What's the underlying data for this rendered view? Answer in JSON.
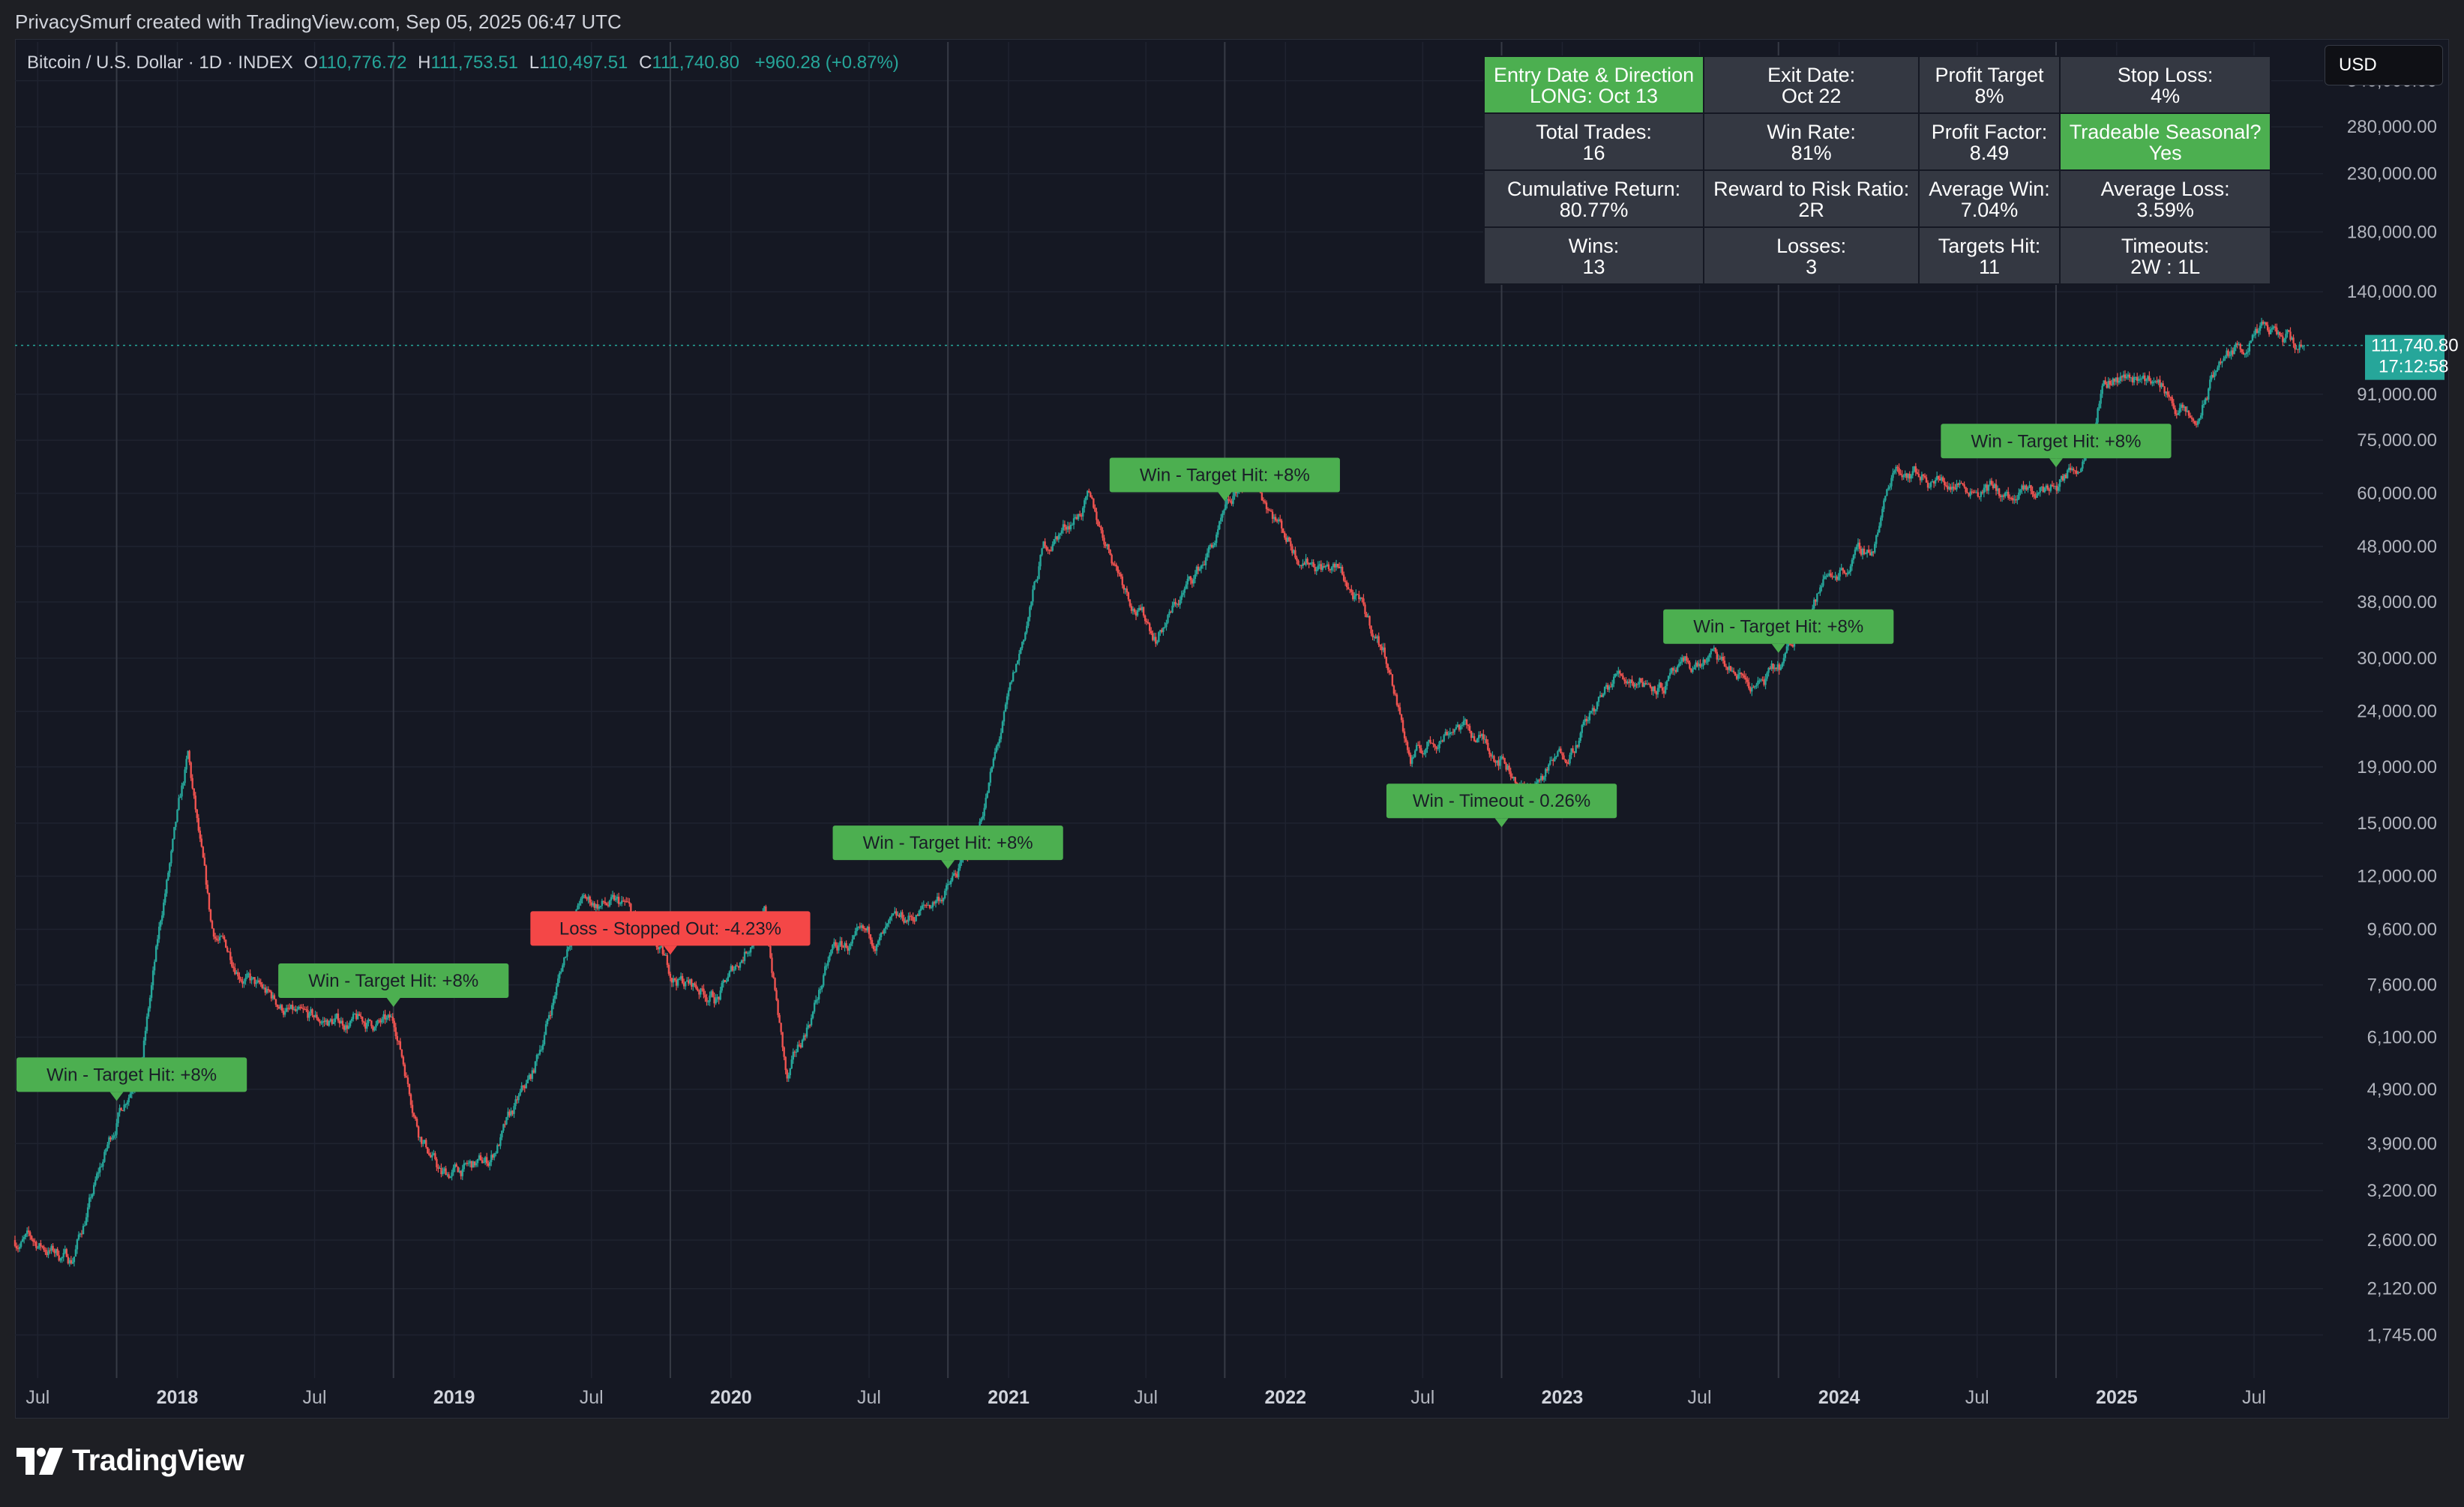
{
  "header": {
    "attribution": "PrivacySmurf created with TradingView.com, Sep 05, 2025 06:47 UTC"
  },
  "symbol": {
    "name": "Bitcoin / U.S. Dollar · 1D · INDEX",
    "open_label": "O",
    "open": "110,776.72",
    "high_label": "H",
    "high": "111,753.51",
    "low_label": "L",
    "low": "110,497.51",
    "close_label": "C",
    "close": "111,740.80",
    "change": "+960.28 (+0.87%)"
  },
  "currency": "USD",
  "price_axis": {
    "ticks": [
      "340,000.00",
      "280,000.00",
      "230,000.00",
      "180,000.00",
      "140,000.00",
      "91,000.00",
      "75,000.00",
      "60,000.00",
      "48,000.00",
      "38,000.00",
      "30,000.00",
      "24,000.00",
      "19,000.00",
      "15,000.00",
      "12,000.00",
      "9,600.00",
      "7,600.00",
      "6,100.00",
      "4,900.00",
      "3,900.00",
      "3,200.00",
      "2,600.00",
      "2,120.00",
      "1,745.00"
    ],
    "last_price": "111,740.80",
    "countdown": "17:12:58"
  },
  "time_axis": {
    "labels": [
      "Jul",
      "2018",
      "Jul",
      "2019",
      "Jul",
      "2020",
      "Jul",
      "2021",
      "Jul",
      "2022",
      "Jul",
      "2023",
      "Jul",
      "2024",
      "Jul",
      "2025",
      "Jul"
    ]
  },
  "stats_table": {
    "rows": [
      [
        {
          "label": "Entry Date & Direction",
          "value": "LONG: Oct 13",
          "highlight": true
        },
        {
          "label": "Exit Date:",
          "value": "Oct 22",
          "highlight": false
        },
        {
          "label": "Profit Target",
          "value": "8%",
          "highlight": false
        },
        {
          "label": "Stop Loss:",
          "value": "4%",
          "highlight": false
        }
      ],
      [
        {
          "label": "Total Trades:",
          "value": "16",
          "highlight": false
        },
        {
          "label": "Win Rate:",
          "value": "81%",
          "highlight": false
        },
        {
          "label": "Profit Factor:",
          "value": "8.49",
          "highlight": false
        },
        {
          "label": "Tradeable Seasonal?",
          "value": "Yes",
          "highlight": true
        }
      ],
      [
        {
          "label": "Cumulative Return:",
          "value": "80.77%",
          "highlight": false
        },
        {
          "label": "Reward to Risk Ratio:",
          "value": "2R",
          "highlight": false
        },
        {
          "label": "Average Win:",
          "value": "7.04%",
          "highlight": false
        },
        {
          "label": "Average Loss:",
          "value": "3.59%",
          "highlight": false
        }
      ],
      [
        {
          "label": "Wins:",
          "value": "13",
          "highlight": false
        },
        {
          "label": "Losses:",
          "value": "3",
          "highlight": false
        },
        {
          "label": "Targets Hit:",
          "value": "11",
          "highlight": false
        },
        {
          "label": "Timeouts:",
          "value": "2W : 1L",
          "highlight": false
        }
      ]
    ]
  },
  "trade_labels": [
    {
      "text": "Win - Target Hit: +8%",
      "kind": "win"
    },
    {
      "text": "Win - Target Hit: +8%",
      "kind": "win"
    },
    {
      "text": "Loss - Stopped Out: -4.23%",
      "kind": "loss"
    },
    {
      "text": "Win - Target Hit: +8%",
      "kind": "win"
    },
    {
      "text": "Win - Target Hit: +8%",
      "kind": "win"
    },
    {
      "text": "Win - Timeout - 0.26%",
      "kind": "win"
    },
    {
      "text": "Win - Target Hit: +8%",
      "kind": "win"
    },
    {
      "text": "Win - Target Hit: +8%",
      "kind": "win"
    }
  ],
  "chart_data": {
    "type": "line",
    "title": "Bitcoin / U.S. Dollar · 1D · INDEX",
    "xlabel": "",
    "ylabel": "",
    "scale": "log",
    "ylim": [
      1600,
      400000
    ],
    "x": [
      "2017-06",
      "2017-08",
      "2017-10",
      "2017-11",
      "2017-12",
      "2018-01",
      "2018-02",
      "2018-04",
      "2018-06",
      "2018-08",
      "2018-10",
      "2018-11",
      "2018-12",
      "2019-02",
      "2019-04",
      "2019-06",
      "2019-08",
      "2019-10",
      "2019-12",
      "2020-02",
      "2020-03",
      "2020-05",
      "2020-07",
      "2020-09",
      "2020-10",
      "2020-11",
      "2021-01",
      "2021-02",
      "2021-04",
      "2021-06",
      "2021-07",
      "2021-09",
      "2021-11",
      "2022-01",
      "2022-03",
      "2022-05",
      "2022-06",
      "2022-08",
      "2022-10",
      "2022-11",
      "2023-01",
      "2023-03",
      "2023-05",
      "2023-07",
      "2023-09",
      "2023-10",
      "2023-12",
      "2024-02",
      "2024-03",
      "2024-05",
      "2024-07",
      "2024-08",
      "2024-10",
      "2024-11",
      "2024-12",
      "2025-02",
      "2025-04",
      "2025-05",
      "2025-07",
      "2025-08",
      "2025-09"
    ],
    "y": [
      2600,
      2400,
      4400,
      5600,
      11000,
      19500,
      9500,
      7500,
      6500,
      6500,
      6400,
      4200,
      3400,
      3600,
      5200,
      10800,
      10500,
      7900,
      7200,
      10200,
      5000,
      8800,
      9200,
      10500,
      11500,
      13500,
      30000,
      47000,
      58000,
      38000,
      33000,
      45000,
      66000,
      47000,
      43000,
      30000,
      19500,
      23000,
      19800,
      17000,
      21000,
      28000,
      27000,
      30000,
      26500,
      28500,
      42000,
      48000,
      68000,
      63000,
      62000,
      58000,
      62000,
      69000,
      98000,
      98000,
      79000,
      104000,
      118000,
      113000,
      111741
    ],
    "series": [
      {
        "name": "Bitcoin / U.S. Dollar",
        "values": [
          2600,
          2400,
          4400,
          5600,
          11000,
          19500,
          9500,
          7500,
          6500,
          6500,
          6400,
          4200,
          3400,
          3600,
          5200,
          10800,
          10500,
          7900,
          7200,
          10200,
          5000,
          8800,
          9200,
          10500,
          11500,
          13500,
          30000,
          47000,
          58000,
          38000,
          33000,
          45000,
          66000,
          47000,
          43000,
          30000,
          19500,
          23000,
          19800,
          17000,
          21000,
          28000,
          27000,
          30000,
          26500,
          28500,
          42000,
          48000,
          68000,
          63000,
          62000,
          58000,
          62000,
          69000,
          98000,
          98000,
          79000,
          104000,
          118000,
          113000,
          111741
        ]
      }
    ],
    "trades": [
      {
        "date": "2017-10-13",
        "result": "Win - Target Hit: +8%"
      },
      {
        "date": "2018-10-13",
        "result": "Win - Target Hit: +8%"
      },
      {
        "date": "2019-10-13",
        "result": "Loss - Stopped Out: -4.23%"
      },
      {
        "date": "2020-10-13",
        "result": "Win - Target Hit: +8%"
      },
      {
        "date": "2021-10-13",
        "result": "Win - Target Hit: +8%"
      },
      {
        "date": "2022-10-13",
        "result": "Win - Timeout - 0.26%"
      },
      {
        "date": "2023-10-13",
        "result": "Win - Target Hit: +8%"
      },
      {
        "date": "2024-10-13",
        "result": "Win - Target Hit: +8%"
      }
    ]
  },
  "colors": {
    "up": "#26a69a",
    "down": "#ef5350",
    "win_label": "#4caf50",
    "loss_label": "#f44747",
    "table_cell": "#343842",
    "background": "#151823"
  },
  "footer": {
    "brand": "TradingView"
  }
}
